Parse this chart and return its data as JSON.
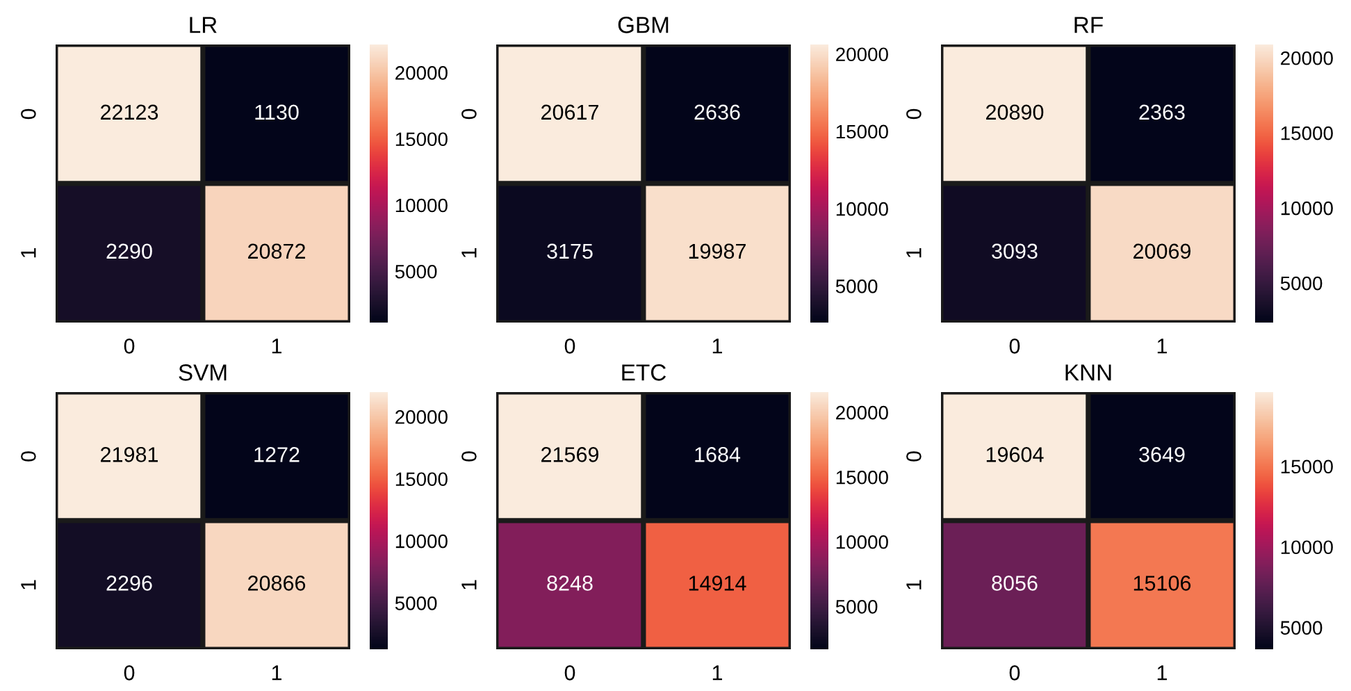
{
  "chart_data": [
    {
      "type": "heatmap",
      "title": "LR",
      "categories": [
        "0",
        "1"
      ],
      "y_categories": [
        "0",
        "1"
      ],
      "cells": [
        [
          22123,
          1130
        ],
        [
          2290,
          20872
        ]
      ],
      "clim": [
        1130,
        22123
      ],
      "cticks": [
        5000,
        10000,
        15000,
        20000
      ],
      "data_labels": true
    },
    {
      "type": "heatmap",
      "title": "GBM",
      "categories": [
        "0",
        "1"
      ],
      "y_categories": [
        "0",
        "1"
      ],
      "cells": [
        [
          20617,
          2636
        ],
        [
          3175,
          19987
        ]
      ],
      "clim": [
        2636,
        20617
      ],
      "cticks": [
        5000,
        10000,
        15000,
        20000
      ],
      "data_labels": true
    },
    {
      "type": "heatmap",
      "title": "RF",
      "categories": [
        "0",
        "1"
      ],
      "y_categories": [
        "0",
        "1"
      ],
      "cells": [
        [
          20890,
          2363
        ],
        [
          3093,
          20069
        ]
      ],
      "clim": [
        2363,
        20890
      ],
      "cticks": [
        5000,
        10000,
        15000,
        20000
      ],
      "data_labels": true
    },
    {
      "type": "heatmap",
      "title": "SVM",
      "categories": [
        "0",
        "1"
      ],
      "y_categories": [
        "0",
        "1"
      ],
      "cells": [
        [
          21981,
          1272
        ],
        [
          2296,
          20866
        ]
      ],
      "clim": [
        1272,
        21981
      ],
      "cticks": [
        5000,
        10000,
        15000,
        20000
      ],
      "data_labels": true
    },
    {
      "type": "heatmap",
      "title": "ETC",
      "categories": [
        "0",
        "1"
      ],
      "y_categories": [
        "0",
        "1"
      ],
      "cells": [
        [
          21569,
          1684
        ],
        [
          8248,
          14914
        ]
      ],
      "clim": [
        1684,
        21569
      ],
      "cticks": [
        5000,
        10000,
        15000,
        20000
      ],
      "data_labels": true
    },
    {
      "type": "heatmap",
      "title": "KNN",
      "categories": [
        "0",
        "1"
      ],
      "y_categories": [
        "0",
        "1"
      ],
      "cells": [
        [
          19604,
          3649
        ],
        [
          8056,
          15106
        ]
      ],
      "clim": [
        3649,
        19604
      ],
      "cticks": [
        5000,
        10000,
        15000
      ],
      "data_labels": true
    }
  ]
}
